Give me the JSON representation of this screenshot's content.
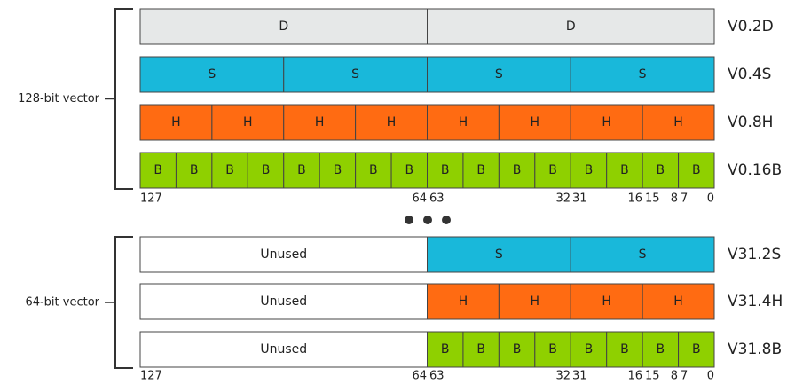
{
  "groups": [
    {
      "label": "128-bit vector",
      "rows": [
        {
          "name": "V0.2D",
          "color": "#e6e8e8",
          "cells": [
            "D",
            "D"
          ]
        },
        {
          "name": "V0.4S",
          "color": "#19b8da",
          "cells": [
            "S",
            "S",
            "S",
            "S"
          ]
        },
        {
          "name": "V0.8H",
          "color": "#ff6b12",
          "cells": [
            "H",
            "H",
            "H",
            "H",
            "H",
            "H",
            "H",
            "H"
          ]
        },
        {
          "name": "V0.16B",
          "color": "#8fd000",
          "cells": [
            "B",
            "B",
            "B",
            "B",
            "B",
            "B",
            "B",
            "B",
            "B",
            "B",
            "B",
            "B",
            "B",
            "B",
            "B",
            "B"
          ]
        }
      ],
      "bit_labels": [
        "127",
        "64",
        "63",
        "32",
        "31",
        "16",
        "15",
        "8",
        "7",
        "0"
      ]
    },
    {
      "label": "64-bit vector",
      "rows": [
        {
          "name": "V31.2S",
          "color": "#19b8da",
          "unused": "Unused",
          "cells": [
            "S",
            "S"
          ]
        },
        {
          "name": "V31.4H",
          "color": "#ff6b12",
          "unused": "Unused",
          "cells": [
            "H",
            "H",
            "H",
            "H"
          ]
        },
        {
          "name": "V31.8B",
          "color": "#8fd000",
          "unused": "Unused",
          "cells": [
            "B",
            "B",
            "B",
            "B",
            "B",
            "B",
            "B",
            "B"
          ]
        }
      ],
      "bit_labels": [
        "127",
        "64",
        "63",
        "32",
        "31",
        "16",
        "15",
        "8",
        "7",
        "0"
      ]
    }
  ]
}
